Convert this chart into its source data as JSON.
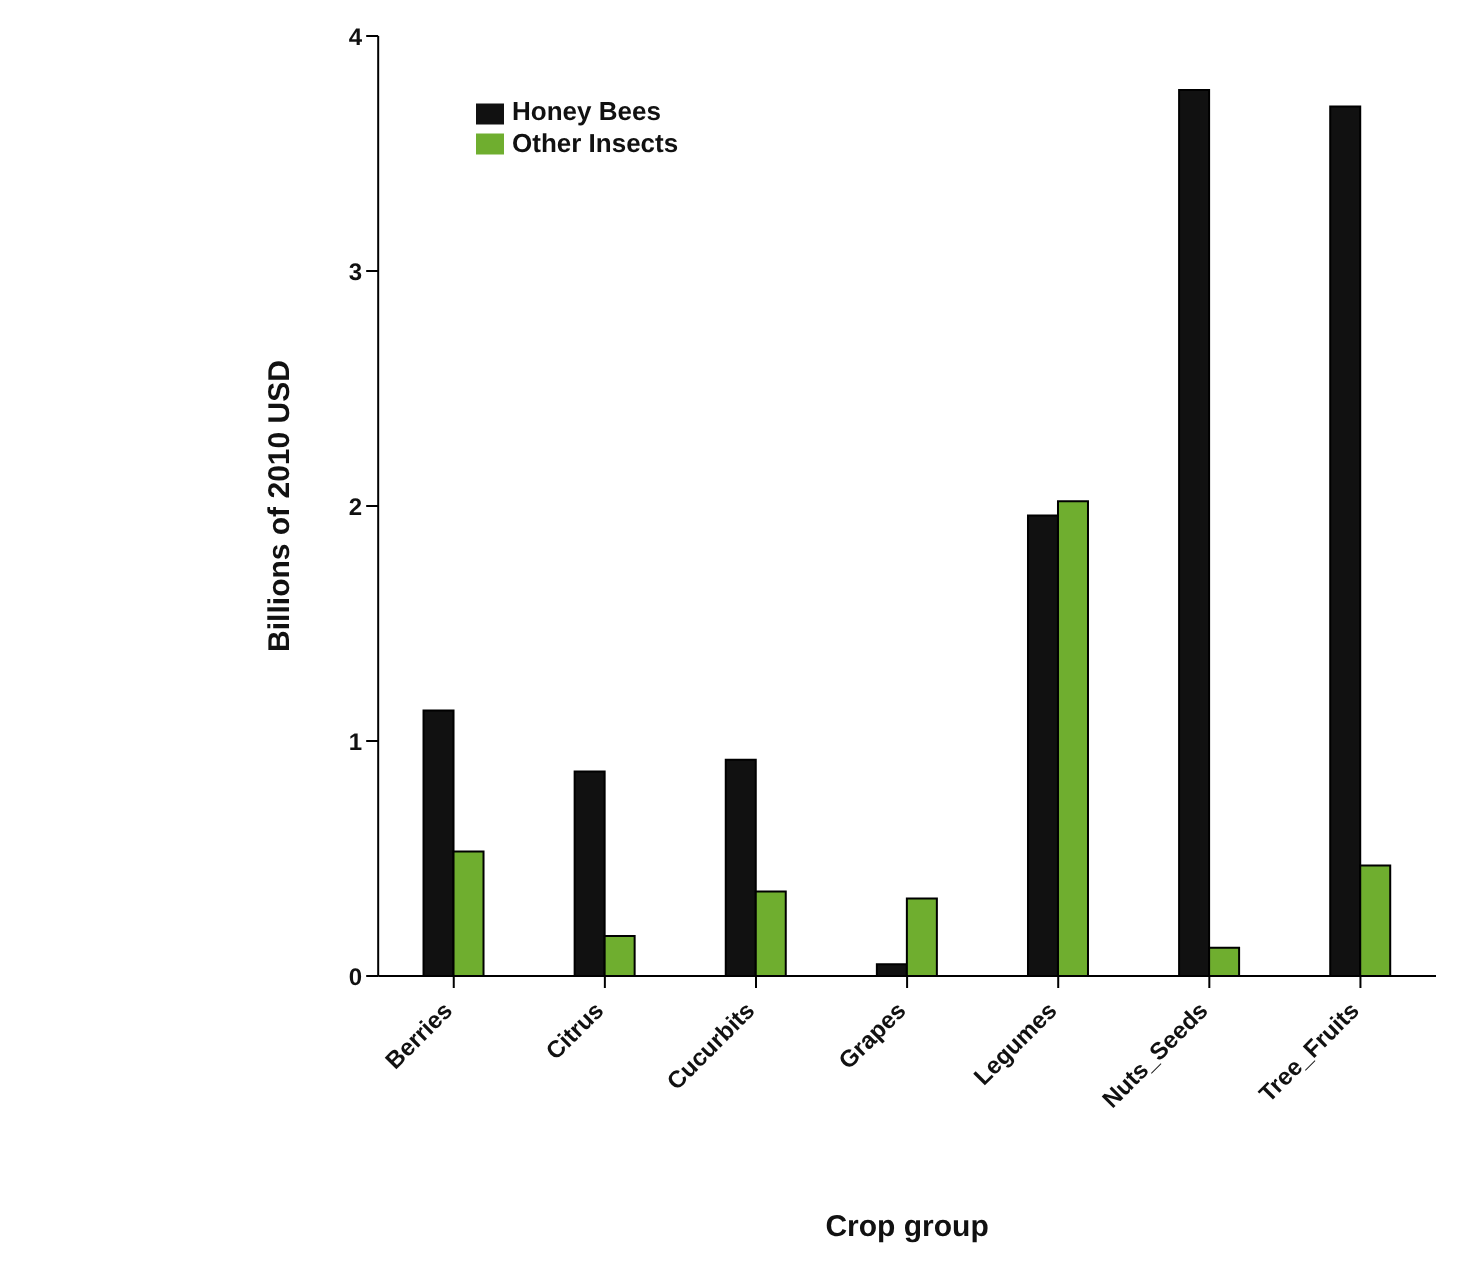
{
  "chart_data": {
    "type": "bar",
    "xlabel": "Crop group",
    "ylabel": "Billions of 2010 USD",
    "categories": [
      "Berries",
      "Citrus",
      "Cucurbits",
      "Grapes",
      "Legumes",
      "Nuts_Seeds",
      "Tree_Fruits"
    ],
    "series": [
      {
        "name": "Honey Bees",
        "color": "#111111",
        "values": [
          1.13,
          0.87,
          0.92,
          0.05,
          1.96,
          3.77,
          3.7
        ]
      },
      {
        "name": "Other Insects",
        "color": "#6fae2f",
        "values": [
          0.53,
          0.17,
          0.36,
          0.33,
          2.02,
          0.12,
          0.47
        ]
      }
    ],
    "ylim": [
      0,
      4
    ],
    "yticks": [
      0,
      1,
      2,
      3,
      4
    ],
    "grid": false,
    "legend": "top left"
  }
}
